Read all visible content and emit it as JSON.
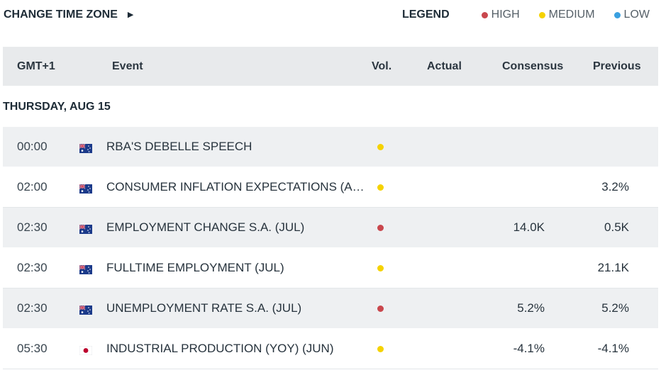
{
  "header": {
    "timezone_label": "CHANGE TIME ZONE",
    "legend": {
      "title": "LEGEND",
      "items": [
        {
          "label": "HIGH",
          "color": "#c9474d"
        },
        {
          "label": "MEDIUM",
          "color": "#f5d200"
        },
        {
          "label": "LOW",
          "color": "#3aa0e0"
        }
      ]
    }
  },
  "table": {
    "columns": {
      "time": "GMT+1",
      "event": "Event",
      "vol": "Vol.",
      "actual": "Actual",
      "consensus": "Consensus",
      "previous": "Previous"
    },
    "day": "THURSDAY, AUG 15",
    "rows": [
      {
        "time": "00:00",
        "flag": "flag-australia-icon",
        "event": "RBA'S DEBELLE SPEECH",
        "vol": "medium",
        "actual": "",
        "consensus": "",
        "previous": ""
      },
      {
        "time": "02:00",
        "flag": "flag-australia-icon",
        "event": "CONSUMER INFLATION EXPECTATIONS (A…",
        "vol": "medium",
        "actual": "",
        "consensus": "",
        "previous": "3.2%"
      },
      {
        "time": "02:30",
        "flag": "flag-australia-icon",
        "event": "EMPLOYMENT CHANGE S.A. (JUL)",
        "vol": "high",
        "actual": "",
        "consensus": "14.0K",
        "previous": "0.5K"
      },
      {
        "time": "02:30",
        "flag": "flag-australia-icon",
        "event": "FULLTIME EMPLOYMENT (JUL)",
        "vol": "medium",
        "actual": "",
        "consensus": "",
        "previous": "21.1K"
      },
      {
        "time": "02:30",
        "flag": "flag-australia-icon",
        "event": "UNEMPLOYMENT RATE S.A. (JUL)",
        "vol": "high",
        "actual": "",
        "consensus": "5.2%",
        "previous": "5.2%"
      },
      {
        "time": "05:30",
        "flag": "flag-japan-icon",
        "event": "INDUSTRIAL PRODUCTION (YOY) (JUN)",
        "vol": "medium",
        "actual": "",
        "consensus": "-4.1%",
        "previous": "-4.1%"
      }
    ]
  }
}
